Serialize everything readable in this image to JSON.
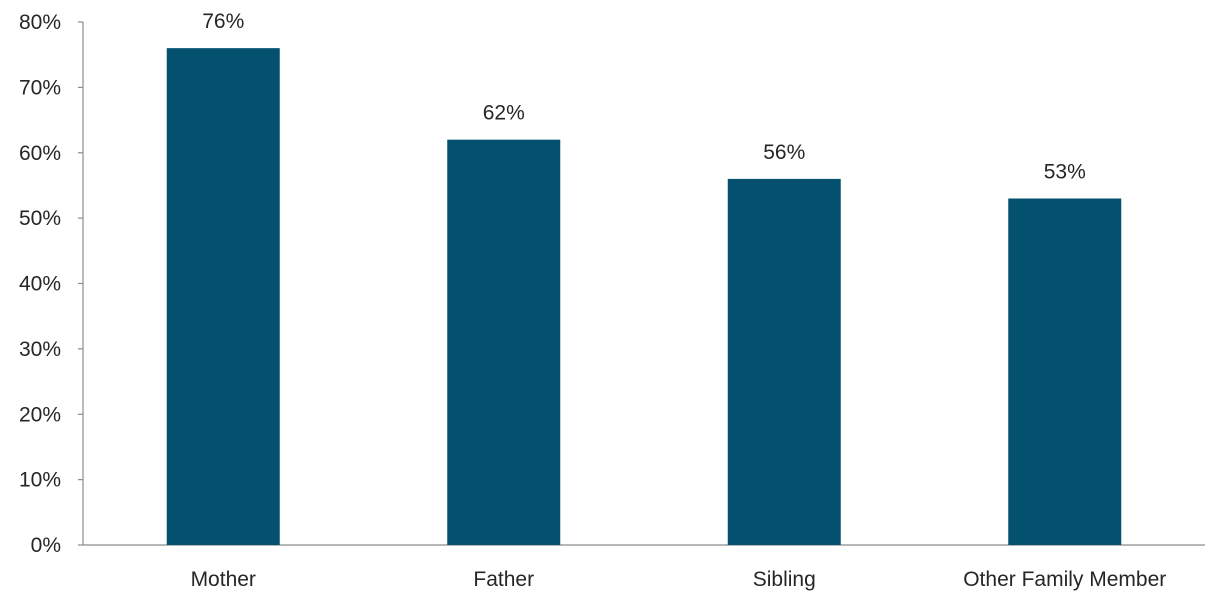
{
  "chart_data": {
    "type": "bar",
    "categories": [
      "Mother",
      "Father",
      "Sibling",
      "Other Family Member"
    ],
    "values": [
      76,
      62,
      56,
      53
    ],
    "data_labels": [
      "76%",
      "62%",
      "56%",
      "53%"
    ],
    "title": "",
    "xlabel": "",
    "ylabel": "",
    "ylim": [
      0,
      80
    ],
    "y_ticks": [
      0,
      10,
      20,
      30,
      40,
      50,
      60,
      70,
      80
    ],
    "y_tick_labels": [
      "0%",
      "10%",
      "20%",
      "30%",
      "40%",
      "50%",
      "60%",
      "70%",
      "80%"
    ],
    "grid": false,
    "legend": "none",
    "bar_color": "#03506f"
  }
}
